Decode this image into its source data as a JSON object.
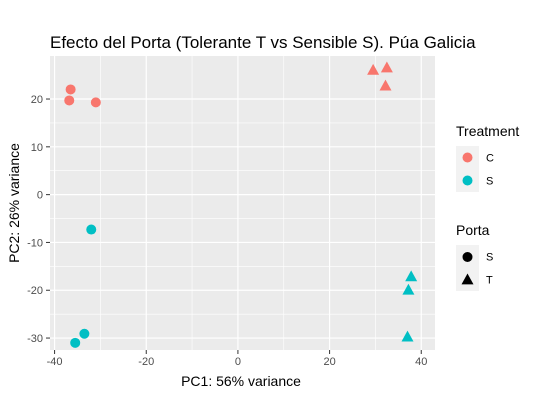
{
  "chart_data": {
    "type": "scatter",
    "title": "Efecto del Porta (Tolerante T vs Sensible S). Púa Galicia",
    "xlabel": "PC1: 56% variance",
    "ylabel": "PC2: 26% variance",
    "xlim": [
      -41,
      43
    ],
    "ylim": [
      -32.5,
      29
    ],
    "xticks": [
      -40,
      -20,
      0,
      20,
      40
    ],
    "yticks": [
      -30,
      -20,
      -10,
      0,
      10,
      20
    ],
    "grid": true,
    "legend_position": "right",
    "legends": [
      {
        "title": "Treatment",
        "kind": "color",
        "entries": [
          {
            "label": "C",
            "color": "#F8766D"
          },
          {
            "label": "S",
            "color": "#00BFC4"
          }
        ]
      },
      {
        "title": "Porta",
        "kind": "shape",
        "entries": [
          {
            "label": "S",
            "shape": "circle"
          },
          {
            "label": "T",
            "shape": "triangle"
          }
        ]
      }
    ],
    "points": [
      {
        "x": -36.5,
        "y": 22.0,
        "treatment": "C",
        "porta": "S"
      },
      {
        "x": -36.8,
        "y": 19.7,
        "treatment": "C",
        "porta": "S"
      },
      {
        "x": -31.0,
        "y": 19.3,
        "treatment": "C",
        "porta": "S"
      },
      {
        "x": 29.5,
        "y": 26.0,
        "treatment": "C",
        "porta": "T"
      },
      {
        "x": 32.5,
        "y": 26.5,
        "treatment": "C",
        "porta": "T"
      },
      {
        "x": 32.2,
        "y": 22.7,
        "treatment": "C",
        "porta": "T"
      },
      {
        "x": -32.0,
        "y": -7.3,
        "treatment": "S",
        "porta": "S"
      },
      {
        "x": -33.5,
        "y": -29.1,
        "treatment": "S",
        "porta": "S"
      },
      {
        "x": -35.5,
        "y": -31.0,
        "treatment": "S",
        "porta": "S"
      },
      {
        "x": 37.8,
        "y": -17.2,
        "treatment": "S",
        "porta": "T"
      },
      {
        "x": 37.2,
        "y": -20.0,
        "treatment": "S",
        "porta": "T"
      },
      {
        "x": 37.0,
        "y": -29.8,
        "treatment": "S",
        "porta": "T"
      }
    ]
  }
}
